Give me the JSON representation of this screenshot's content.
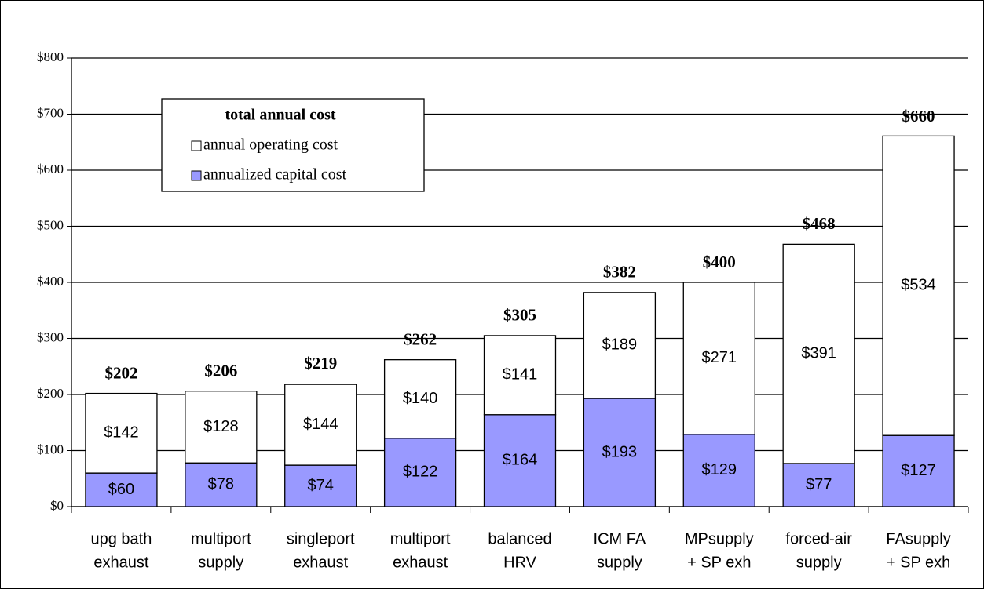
{
  "chart_data": {
    "type": "stacked-bar",
    "categories": [
      [
        "upg bath",
        "exhaust"
      ],
      [
        "multiport",
        "supply"
      ],
      [
        "singleport",
        "exhaust"
      ],
      [
        "multiport",
        "exhaust"
      ],
      [
        "balanced",
        "HRV"
      ],
      [
        "ICM FA",
        "supply"
      ],
      [
        "MPsupply",
        "+ SP exh"
      ],
      [
        "forced-air",
        "supply"
      ],
      [
        "FAsupply",
        "+ SP exh"
      ]
    ],
    "series": [
      {
        "name": "annualized capital cost",
        "color": "#9999ff",
        "values": [
          60,
          78,
          74,
          122,
          164,
          193,
          129,
          77,
          127
        ],
        "value_labels": [
          "$60",
          "$78",
          "$74",
          "$122",
          "$164",
          "$193",
          "$129",
          "$77",
          "$127"
        ]
      },
      {
        "name": "annual operating cost",
        "color": "#ffffff",
        "values": [
          142,
          128,
          144,
          140,
          141,
          189,
          271,
          391,
          534
        ],
        "value_labels": [
          "$142",
          "$128",
          "$144",
          "$140",
          "$141",
          "$189",
          "$271",
          "$391",
          "$534"
        ]
      }
    ],
    "totals": [
      202,
      206,
      219,
      262,
      305,
      382,
      400,
      468,
      660
    ],
    "total_labels": [
      "$202",
      "$206",
      "$219",
      "$262",
      "$305",
      "$382",
      "$400",
      "$468",
      "$660"
    ],
    "legend_title": "total annual cost",
    "ylim": [
      0,
      800
    ],
    "yticks": [
      {
        "value": 0,
        "label": "$0"
      },
      {
        "value": 100,
        "label": "$100"
      },
      {
        "value": 200,
        "label": "$200"
      },
      {
        "value": 300,
        "label": "$300"
      },
      {
        "value": 400,
        "label": "$400"
      },
      {
        "value": 500,
        "label": "$500"
      },
      {
        "value": 600,
        "label": "$600"
      },
      {
        "value": 700,
        "label": "$700"
      },
      {
        "value": 800,
        "label": "$800"
      }
    ],
    "grid": true,
    "legend": "upper left"
  }
}
